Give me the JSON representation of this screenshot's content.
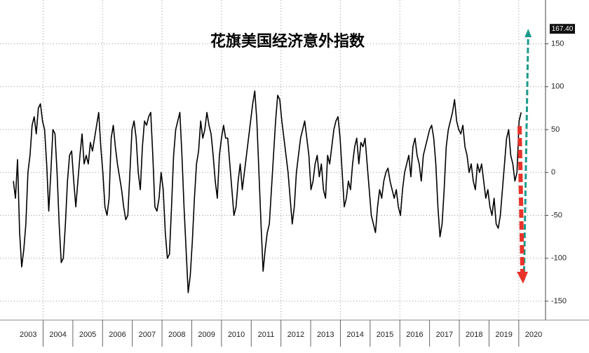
{
  "chart_data": {
    "type": "line",
    "title": "花旗美国经济意外指数",
    "x": [
      2003,
      2003.07,
      2003.14,
      2003.21,
      2003.28,
      2003.35,
      2003.42,
      2003.49,
      2003.56,
      2003.63,
      2003.7,
      2003.77,
      2003.84,
      2003.91,
      2003.98,
      2004.05,
      2004.12,
      2004.19,
      2004.26,
      2004.33,
      2004.4,
      2004.47,
      2004.54,
      2004.61,
      2004.68,
      2004.75,
      2004.82,
      2004.89,
      2004.96,
      2005.03,
      2005.1,
      2005.17,
      2005.24,
      2005.31,
      2005.38,
      2005.45,
      2005.52,
      2005.59,
      2005.66,
      2005.73,
      2005.8,
      2005.87,
      2005.94,
      2006.01,
      2006.08,
      2006.15,
      2006.22,
      2006.29,
      2006.36,
      2006.43,
      2006.5,
      2006.57,
      2006.64,
      2006.71,
      2006.78,
      2006.85,
      2006.92,
      2006.99,
      2007.06,
      2007.13,
      2007.2,
      2007.27,
      2007.34,
      2007.41,
      2007.48,
      2007.55,
      2007.62,
      2007.69,
      2007.76,
      2007.83,
      2007.9,
      2007.97,
      2008.04,
      2008.11,
      2008.18,
      2008.25,
      2008.32,
      2008.39,
      2008.46,
      2008.53,
      2008.6,
      2008.67,
      2008.74,
      2008.81,
      2008.88,
      2008.95,
      2009.02,
      2009.09,
      2009.16,
      2009.23,
      2009.3,
      2009.37,
      2009.44,
      2009.51,
      2009.58,
      2009.65,
      2009.72,
      2009.79,
      2009.86,
      2009.93,
      2010,
      2010.07,
      2010.14,
      2010.21,
      2010.28,
      2010.35,
      2010.42,
      2010.49,
      2010.56,
      2010.63,
      2010.7,
      2010.77,
      2010.84,
      2010.91,
      2010.98,
      2011.05,
      2011.12,
      2011.19,
      2011.26,
      2011.33,
      2011.4,
      2011.47,
      2011.54,
      2011.61,
      2011.68,
      2011.75,
      2011.82,
      2011.89,
      2011.96,
      2012.03,
      2012.1,
      2012.17,
      2012.24,
      2012.31,
      2012.38,
      2012.45,
      2012.52,
      2012.59,
      2012.66,
      2012.73,
      2012.8,
      2012.87,
      2012.94,
      2013.01,
      2013.08,
      2013.15,
      2013.22,
      2013.29,
      2013.36,
      2013.43,
      2013.5,
      2013.57,
      2013.64,
      2013.71,
      2013.78,
      2013.85,
      2013.92,
      2013.99,
      2014.06,
      2014.13,
      2014.2,
      2014.27,
      2014.34,
      2014.41,
      2014.48,
      2014.55,
      2014.62,
      2014.69,
      2014.76,
      2014.83,
      2014.9,
      2014.97,
      2015.04,
      2015.11,
      2015.18,
      2015.25,
      2015.32,
      2015.39,
      2015.46,
      2015.53,
      2015.6,
      2015.67,
      2015.74,
      2015.81,
      2015.88,
      2015.95,
      2016.02,
      2016.09,
      2016.16,
      2016.23,
      2016.3,
      2016.37,
      2016.44,
      2016.51,
      2016.58,
      2016.65,
      2016.72,
      2016.79,
      2016.86,
      2016.93,
      2017,
      2017.07,
      2017.14,
      2017.21,
      2017.28,
      2017.35,
      2017.42,
      2017.49,
      2017.56,
      2017.63,
      2017.7,
      2017.77,
      2017.84,
      2017.91,
      2017.98,
      2018.05,
      2018.12,
      2018.19,
      2018.26,
      2018.33,
      2018.4,
      2018.47,
      2018.54,
      2018.61,
      2018.68,
      2018.75,
      2018.82,
      2018.89,
      2018.96,
      2019.03,
      2019.1,
      2019.17,
      2019.24,
      2019.31,
      2019.38,
      2019.45,
      2019.52,
      2019.59,
      2019.66,
      2019.73,
      2019.8,
      2019.87,
      2019.94,
      2020.01,
      2020.08
    ],
    "series": [
      {
        "color": "#000000",
        "values": [
          -10,
          -30,
          15,
          -70,
          -110,
          -90,
          -60,
          0,
          20,
          55,
          65,
          45,
          75,
          80,
          60,
          50,
          10,
          -45,
          0,
          50,
          45,
          0,
          -60,
          -105,
          -100,
          -60,
          -10,
          20,
          25,
          -10,
          -40,
          -10,
          20,
          45,
          10,
          20,
          10,
          35,
          25,
          40,
          55,
          70,
          30,
          0,
          -40,
          -50,
          -30,
          40,
          55,
          30,
          10,
          -5,
          -20,
          -40,
          -55,
          -50,
          0,
          50,
          60,
          40,
          0,
          -20,
          30,
          60,
          55,
          65,
          70,
          20,
          -40,
          -45,
          -30,
          0,
          -20,
          -70,
          -100,
          -95,
          -40,
          20,
          50,
          60,
          70,
          20,
          -40,
          -90,
          -140,
          -120,
          -80,
          -30,
          10,
          25,
          60,
          40,
          50,
          70,
          55,
          45,
          20,
          -10,
          -30,
          20,
          40,
          55,
          40,
          40,
          10,
          -20,
          -50,
          -40,
          -10,
          10,
          -20,
          0,
          20,
          40,
          60,
          80,
          95,
          60,
          0,
          -60,
          -115,
          -90,
          -70,
          -60,
          -20,
          20,
          60,
          90,
          85,
          60,
          40,
          20,
          0,
          -30,
          -60,
          -40,
          0,
          20,
          40,
          50,
          60,
          40,
          20,
          -20,
          -10,
          10,
          20,
          -5,
          10,
          -20,
          -30,
          20,
          10,
          30,
          50,
          60,
          65,
          40,
          0,
          -40,
          -30,
          -10,
          -20,
          10,
          30,
          40,
          10,
          35,
          30,
          40,
          10,
          -20,
          -50,
          -60,
          -70,
          -40,
          -20,
          -30,
          -10,
          0,
          5,
          -10,
          -20,
          -30,
          -20,
          -40,
          -50,
          -20,
          0,
          10,
          20,
          -5,
          30,
          40,
          20,
          10,
          -10,
          20,
          30,
          40,
          50,
          55,
          40,
          10,
          -40,
          -75,
          -60,
          -20,
          30,
          50,
          60,
          70,
          85,
          60,
          50,
          45,
          55,
          30,
          20,
          0,
          10,
          -10,
          -20,
          10,
          0,
          10,
          -10,
          -30,
          -20,
          -40,
          -50,
          -30,
          -60,
          -65,
          -50,
          -20,
          10,
          40,
          50,
          20,
          10,
          -10,
          0,
          60,
          70
        ]
      }
    ],
    "annotations": [
      {
        "value": 167.4,
        "label": "167.40"
      }
    ],
    "xlim": [
      2002.55,
      2020.9
    ],
    "xticks": [
      {
        "value": 2003.5,
        "label": "2003"
      },
      {
        "value": 2004.5,
        "label": "2004"
      },
      {
        "value": 2005.5,
        "label": "2005"
      },
      {
        "value": 2006.5,
        "label": "2006"
      },
      {
        "value": 2007.5,
        "label": "2007"
      },
      {
        "value": 2008.5,
        "label": "2008"
      },
      {
        "value": 2009.5,
        "label": "2009"
      },
      {
        "value": 2010.5,
        "label": "2010"
      },
      {
        "value": 2011.5,
        "label": "2011"
      },
      {
        "value": 2012.5,
        "label": "2012"
      },
      {
        "value": 2013.5,
        "label": "2013"
      },
      {
        "value": 2014.5,
        "label": "2014"
      },
      {
        "value": 2015.5,
        "label": "2015"
      },
      {
        "value": 2016.5,
        "label": "2016"
      },
      {
        "value": 2017.5,
        "label": "2017"
      },
      {
        "value": 2018.5,
        "label": "2018"
      },
      {
        "value": 2019.5,
        "label": "2019"
      },
      {
        "value": 2020.5,
        "label": "2020"
      }
    ],
    "ylim": [
      -172,
      201
    ],
    "yticks": [
      -150,
      -100,
      -50,
      0,
      50,
      100,
      150
    ],
    "grid": true
  }
}
